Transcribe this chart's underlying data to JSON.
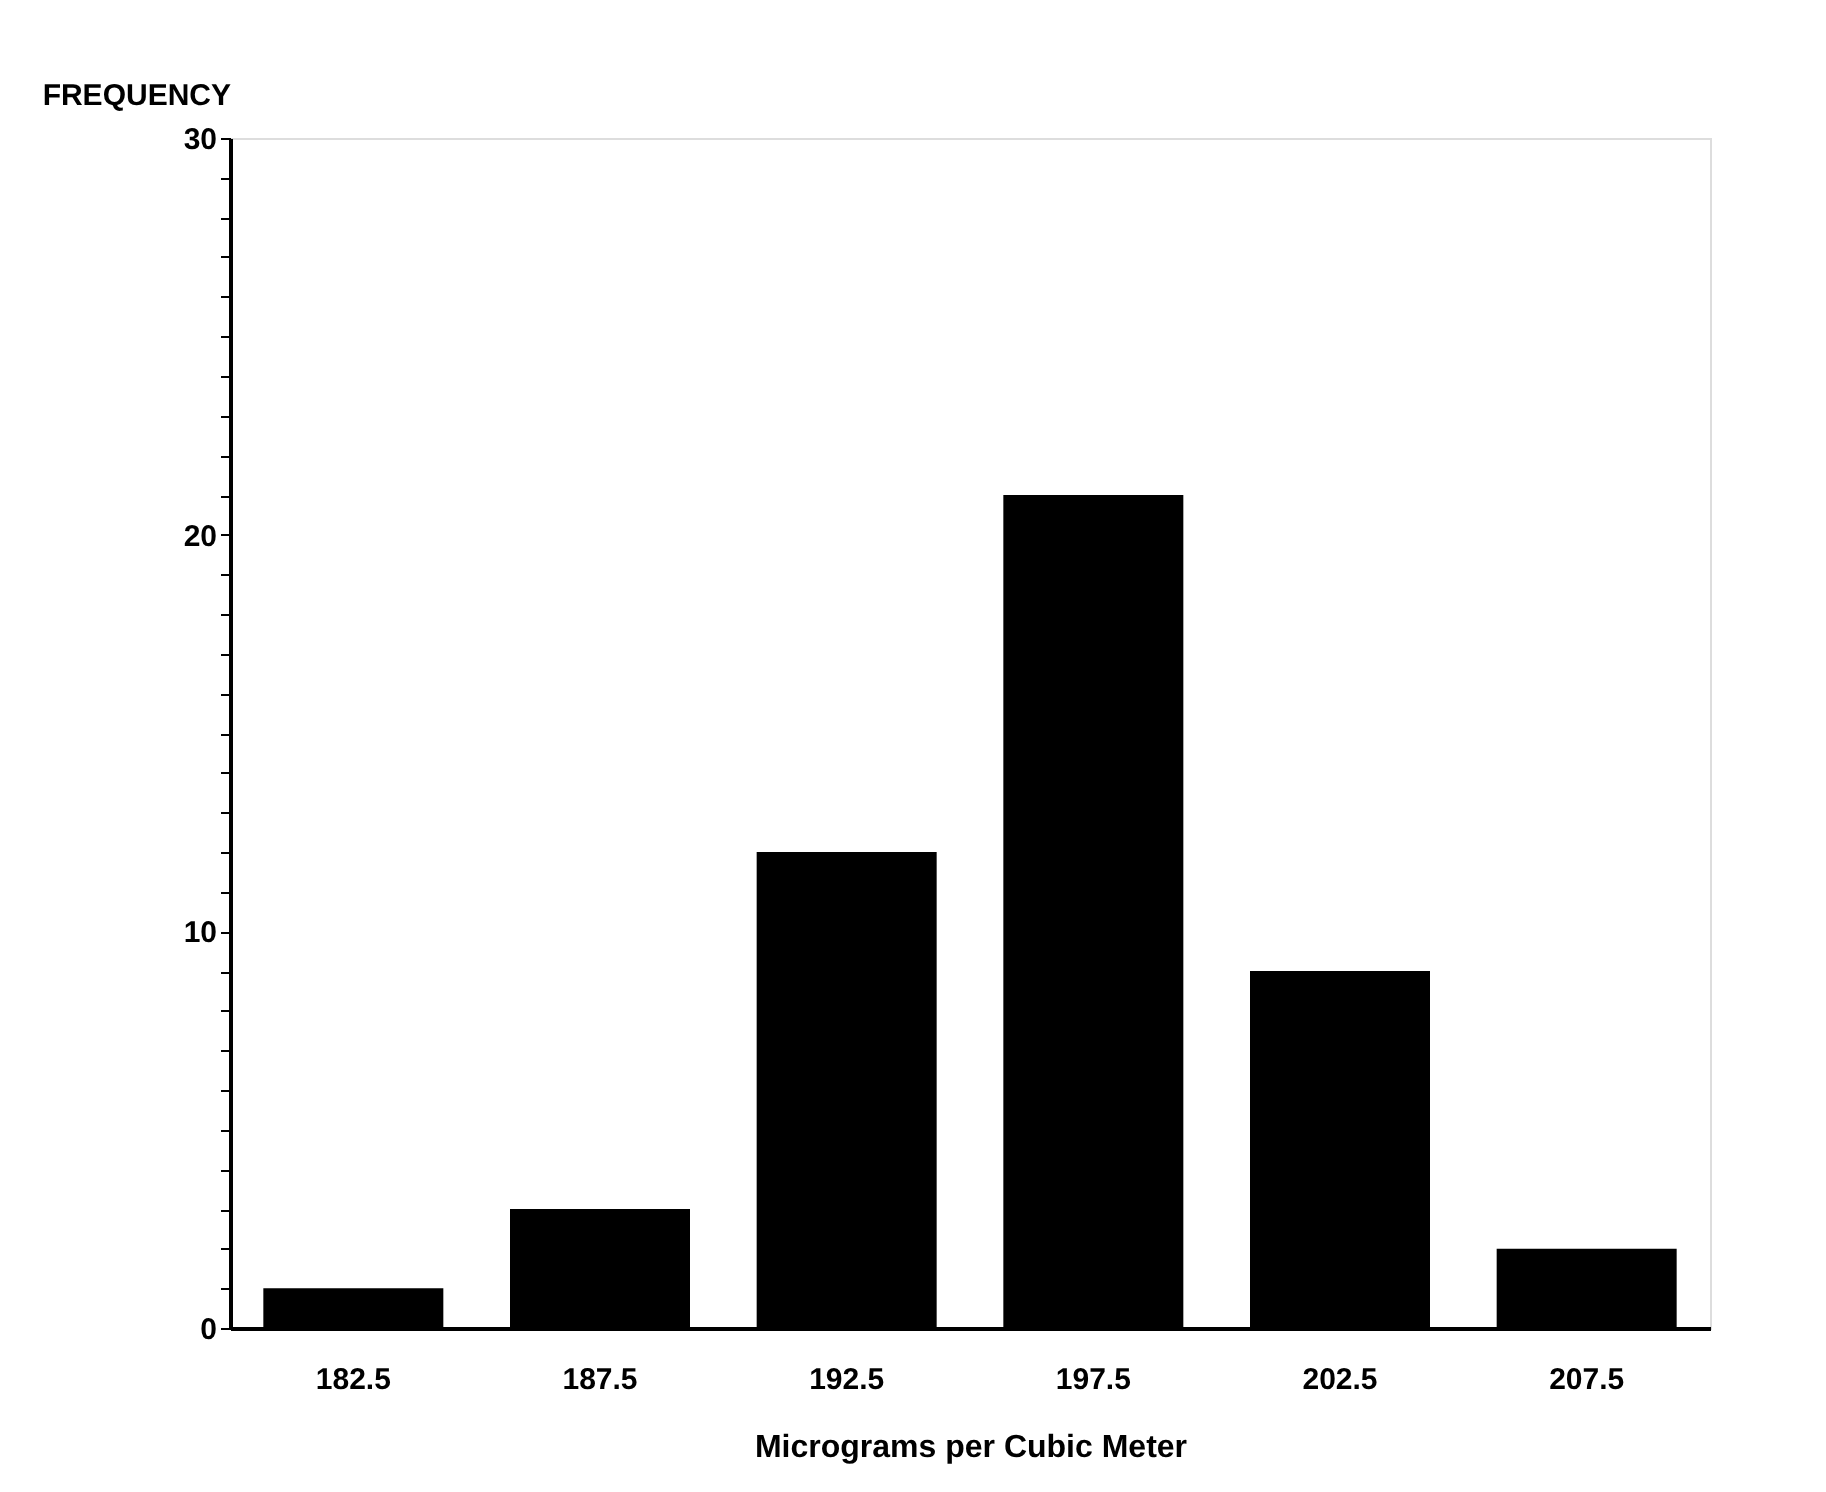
{
  "chart_data": {
    "type": "bar",
    "categories": [
      "182.5",
      "187.5",
      "192.5",
      "197.5",
      "202.5",
      "207.5"
    ],
    "values": [
      1,
      3,
      12,
      21,
      9,
      2
    ],
    "color": "#000000",
    "xlabel": "Micrograms per Cubic Meter",
    "ylabel": "FREQUENCY",
    "ylim": [
      0,
      30
    ],
    "yticks": [
      0,
      {
        "value": 1,
        "label": null
      },
      {
        "value": 2,
        "label": null
      },
      {
        "value": 3,
        "label": null
      },
      {
        "value": 4,
        "label": null
      },
      {
        "value": 5,
        "label": null
      },
      {
        "value": 6,
        "label": null
      },
      {
        "value": 7,
        "label": null
      },
      {
        "value": 8,
        "label": null
      },
      {
        "value": 9,
        "label": null
      },
      10,
      {
        "value": 11,
        "label": null
      },
      {
        "value": 12,
        "label": null
      },
      {
        "value": 13,
        "label": null
      },
      {
        "value": 14,
        "label": null
      },
      {
        "value": 15,
        "label": null
      },
      {
        "value": 16,
        "label": null
      },
      {
        "value": 17,
        "label": null
      },
      {
        "value": 18,
        "label": null
      },
      {
        "value": 19,
        "label": null
      },
      20,
      {
        "value": 21,
        "label": null
      },
      {
        "value": 22,
        "label": null
      },
      {
        "value": 23,
        "label": null
      },
      {
        "value": 24,
        "label": null
      },
      {
        "value": 25,
        "label": null
      },
      {
        "value": 26,
        "label": null
      },
      {
        "value": 27,
        "label": null
      },
      {
        "value": 28,
        "label": null
      },
      {
        "value": 29,
        "label": null
      },
      30
    ],
    "grid": false
  }
}
